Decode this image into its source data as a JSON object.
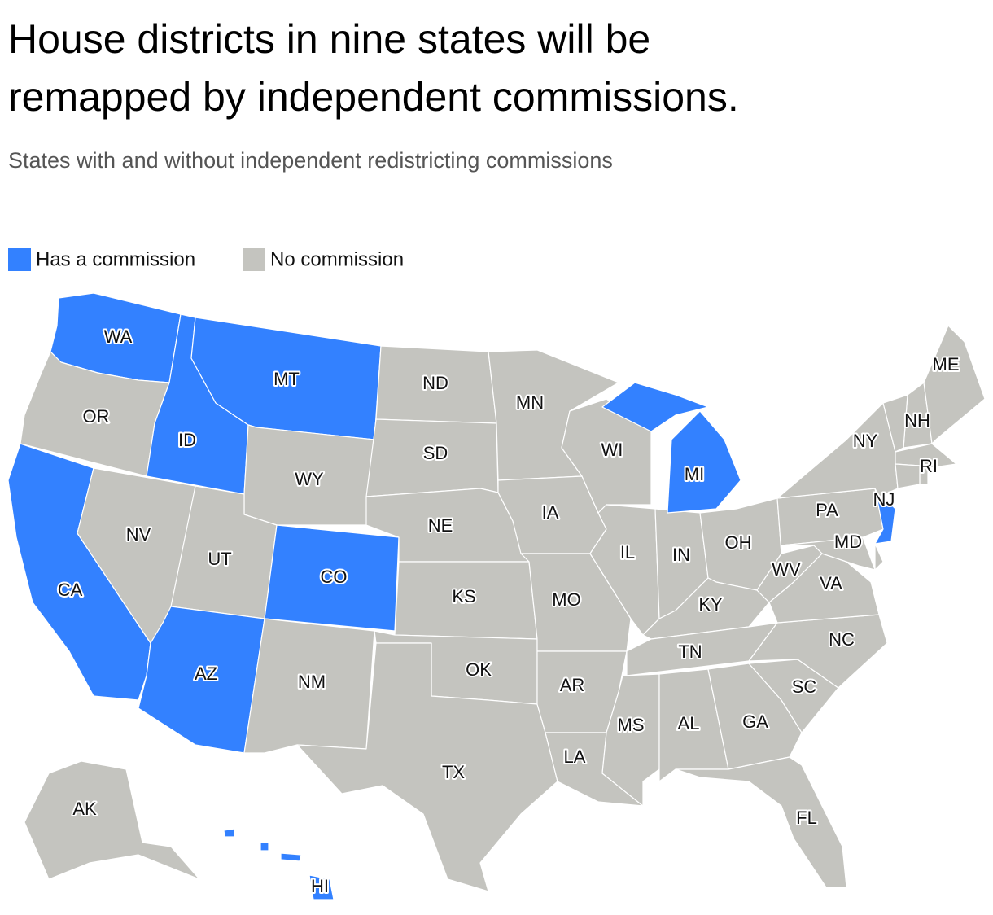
{
  "title_lines": [
    "House districts in nine states will be",
    "remapped by independent commissions."
  ],
  "subtitle": "States with and without independent redistricting commissions",
  "legend": [
    {
      "label": "Has a commission",
      "color": "#3381ff"
    },
    {
      "label": "No commission",
      "color": "#c4c4bf"
    }
  ],
  "states": [
    {
      "abbr": "WA",
      "commission": true
    },
    {
      "abbr": "OR",
      "commission": false
    },
    {
      "abbr": "CA",
      "commission": true
    },
    {
      "abbr": "NV",
      "commission": false
    },
    {
      "abbr": "ID",
      "commission": true
    },
    {
      "abbr": "MT",
      "commission": true
    },
    {
      "abbr": "WY",
      "commission": false
    },
    {
      "abbr": "UT",
      "commission": false
    },
    {
      "abbr": "CO",
      "commission": true
    },
    {
      "abbr": "AZ",
      "commission": true
    },
    {
      "abbr": "NM",
      "commission": false
    },
    {
      "abbr": "ND",
      "commission": false
    },
    {
      "abbr": "SD",
      "commission": false
    },
    {
      "abbr": "NE",
      "commission": false
    },
    {
      "abbr": "KS",
      "commission": false
    },
    {
      "abbr": "OK",
      "commission": false
    },
    {
      "abbr": "TX",
      "commission": false
    },
    {
      "abbr": "MN",
      "commission": false
    },
    {
      "abbr": "IA",
      "commission": false
    },
    {
      "abbr": "MO",
      "commission": false
    },
    {
      "abbr": "AR",
      "commission": false
    },
    {
      "abbr": "LA",
      "commission": false
    },
    {
      "abbr": "WI",
      "commission": false
    },
    {
      "abbr": "IL",
      "commission": false
    },
    {
      "abbr": "IN",
      "commission": false
    },
    {
      "abbr": "MI",
      "commission": true
    },
    {
      "abbr": "OH",
      "commission": false
    },
    {
      "abbr": "KY",
      "commission": false
    },
    {
      "abbr": "TN",
      "commission": false
    },
    {
      "abbr": "MS",
      "commission": false
    },
    {
      "abbr": "AL",
      "commission": false
    },
    {
      "abbr": "GA",
      "commission": false
    },
    {
      "abbr": "FL",
      "commission": false
    },
    {
      "abbr": "SC",
      "commission": false
    },
    {
      "abbr": "NC",
      "commission": false
    },
    {
      "abbr": "VA",
      "commission": false
    },
    {
      "abbr": "WV",
      "commission": false
    },
    {
      "abbr": "PA",
      "commission": false
    },
    {
      "abbr": "MD",
      "commission": false
    },
    {
      "abbr": "NJ",
      "commission": true
    },
    {
      "abbr": "NY",
      "commission": false
    },
    {
      "abbr": "NH",
      "commission": false
    },
    {
      "abbr": "ME",
      "commission": false
    },
    {
      "abbr": "RI",
      "commission": false
    },
    {
      "abbr": "AK",
      "commission": false
    },
    {
      "abbr": "HI",
      "commission": true
    },
    {
      "abbr": null,
      "commission": false
    },
    {
      "abbr": null,
      "commission": false
    },
    {
      "abbr": null,
      "commission": false
    },
    {
      "abbr": null,
      "commission": false
    }
  ]
}
